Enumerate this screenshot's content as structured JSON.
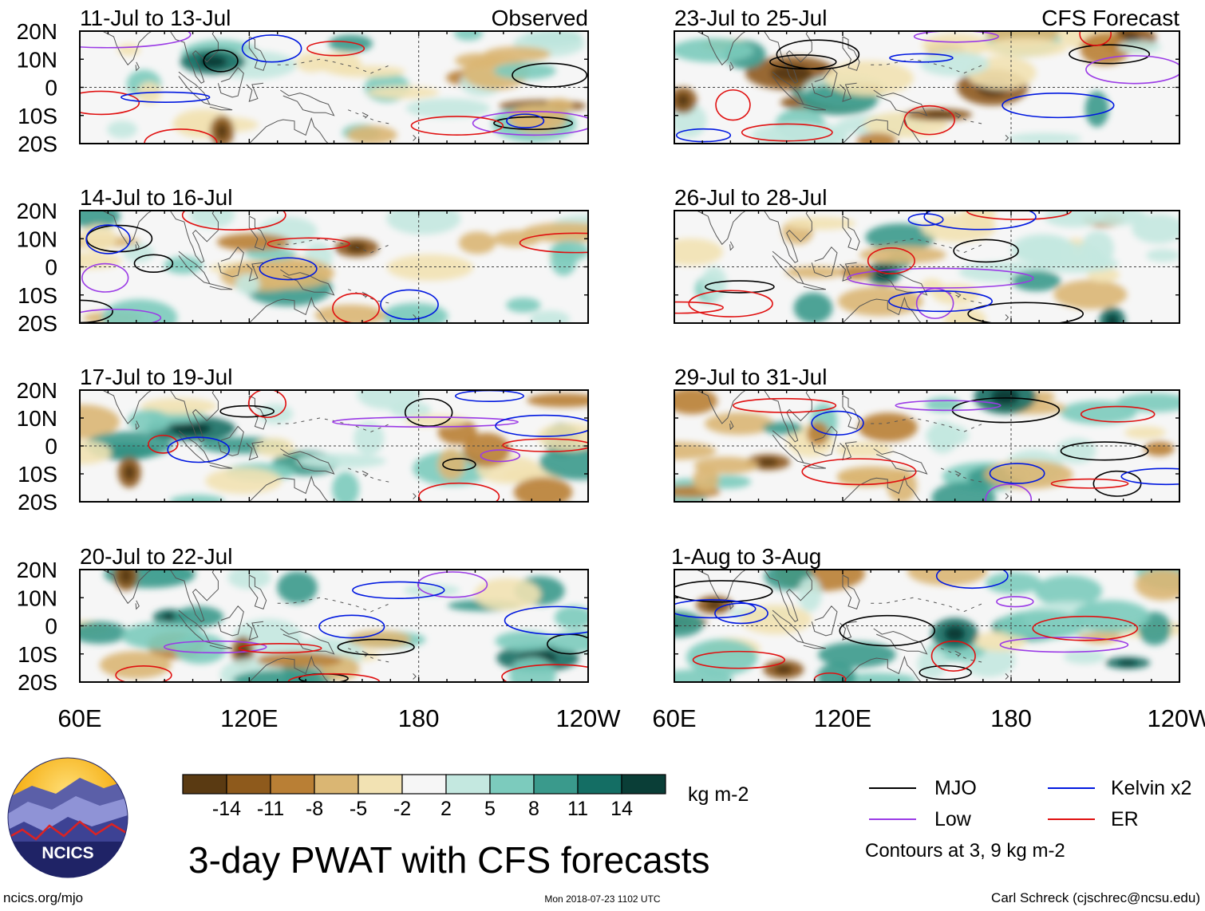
{
  "chart_data": {
    "type": "heatmap",
    "title": "3-day PWAT with CFS forecasts",
    "variable": "Precipitable water anomaly",
    "units": "kg m-2",
    "x_axis": {
      "ticks": [
        "60E",
        "120E",
        "180",
        "120W"
      ],
      "range_deg_east": [
        60,
        240
      ]
    },
    "y_axis": {
      "ticks": [
        "20N",
        "10N",
        "0",
        "10S",
        "20S"
      ],
      "range_deg_north": [
        -20,
        20
      ]
    },
    "columns": [
      {
        "label": "Observed",
        "position": "left"
      },
      {
        "label": "CFS Forecast",
        "position": "right"
      }
    ],
    "panels": [
      {
        "period": "11-Jul to 13-Jul",
        "source": "Observed"
      },
      {
        "period": "14-Jul to 16-Jul",
        "source": "Observed"
      },
      {
        "period": "17-Jul to 19-Jul",
        "source": "Observed"
      },
      {
        "period": "20-Jul to 22-Jul",
        "source": "Observed"
      },
      {
        "period": "23-Jul to 25-Jul",
        "source": "CFS Forecast"
      },
      {
        "period": "26-Jul to 28-Jul",
        "source": "CFS Forecast"
      },
      {
        "period": "29-Jul to 31-Jul",
        "source": "CFS Forecast"
      },
      {
        "period": "1-Aug to 3-Aug",
        "source": "CFS Forecast"
      }
    ],
    "colorbar": {
      "levels": [
        -14,
        -11,
        -8,
        -5,
        -2,
        2,
        5,
        8,
        11,
        14
      ],
      "level_labels": [
        "-14",
        "-11",
        "-8",
        "-5",
        "-2",
        "2",
        "5",
        "8",
        "11",
        "14"
      ],
      "colors": [
        "#5a3a12",
        "#8e5a1c",
        "#b97f35",
        "#dab673",
        "#f2e2b3",
        "#f6f6f6",
        "#c4e8e0",
        "#7ccbbd",
        "#3a9a8c",
        "#146e64",
        "#0a3e37"
      ],
      "units_label": "kg m-2"
    },
    "legend": [
      {
        "name": "MJO",
        "color": "#000000"
      },
      {
        "name": "Kelvin x2",
        "color": "#0018e0"
      },
      {
        "name": "Low",
        "color": "#9b3be6"
      },
      {
        "name": "ER",
        "color": "#e01010"
      }
    ],
    "contour_note": "Contours at 3, 9 kg m-2"
  },
  "logo": {
    "text": "NCICS"
  },
  "footer": {
    "left": "ncics.org/mjo",
    "center": "Mon 2018-07-23 1102 UTC",
    "right": "Carl Schreck (cjschrec@ncsu.edu)"
  }
}
